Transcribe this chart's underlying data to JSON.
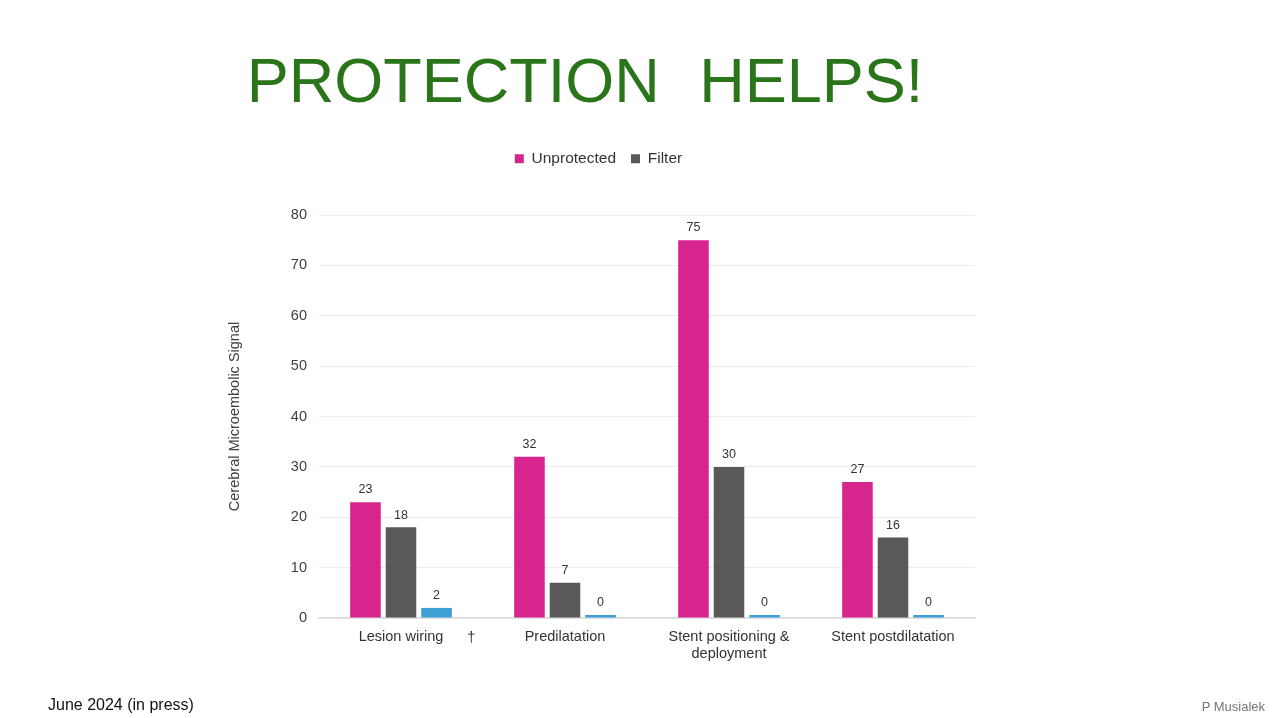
{
  "chart_data": {
    "type": "bar",
    "title": "PROTECTION HELPS!",
    "ylabel": "Cerebral Microembolic Signal",
    "categories": [
      "Lesion wiring",
      "Predilatation",
      "Stent positioning & deployment",
      "Stent postdilatation"
    ],
    "series": [
      {
        "name": "Unprotected",
        "color": "#d7258f",
        "values": [
          23,
          32,
          75,
          27
        ]
      },
      {
        "name": "Filter",
        "color": "#595959",
        "values": [
          18,
          7,
          30,
          16
        ]
      },
      {
        "color": "#3e9fd5",
        "values": [
          2,
          0,
          0,
          0
        ]
      }
    ],
    "ylim": [
      0,
      80
    ],
    "yticks": [
      0,
      10,
      20,
      30,
      40,
      50,
      60,
      70,
      80
    ],
    "grid": "y",
    "legend": "top",
    "data_labels": true,
    "annotations": [
      "†",
      "June 2024 (in press)",
      "P Musialek"
    ]
  }
}
